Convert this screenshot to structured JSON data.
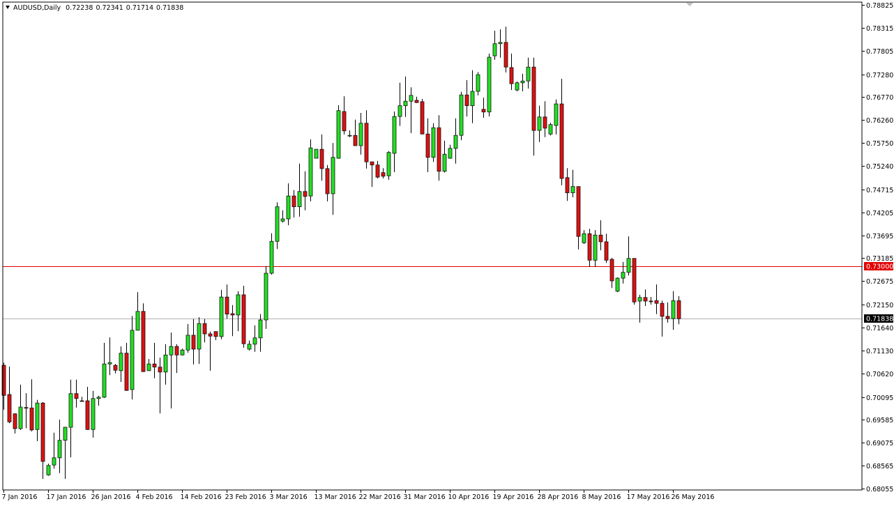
{
  "header": {
    "symbol_timeframe": "AUDUSD,Daily",
    "open": "0.72238",
    "high": "0.72341",
    "low": "0.71714",
    "close": "0.71838"
  },
  "colors": {
    "bull": "#22e022",
    "bear": "#dd1111",
    "level_line": "#e00000",
    "bid_line": "#b0b0b0",
    "bid_label_bg": "#000000",
    "axis": "#000000"
  },
  "chart_data": {
    "type": "candlestick",
    "symbol": "AUDUSD",
    "timeframe": "Daily",
    "ylim": [
      0.68055,
      0.78825
    ],
    "grid": false,
    "y_ticks": [
      "0.78825",
      "0.78315",
      "0.77805",
      "0.77280",
      "0.76770",
      "0.76260",
      "0.75750",
      "0.75240",
      "0.74715",
      "0.74205",
      "0.73695",
      "0.73185",
      "0.72675",
      "0.72150",
      "0.71640",
      "0.71130",
      "0.70620",
      "0.70095",
      "0.69585",
      "0.69075",
      "0.68565",
      "0.68055"
    ],
    "x_ticks": [
      {
        "date": "2016-01-07",
        "label": "7 Jan 2016"
      },
      {
        "date": "2016-01-17",
        "label": "17 Jan 2016"
      },
      {
        "date": "2016-01-26",
        "label": "26 Jan 2016"
      },
      {
        "date": "2016-02-04",
        "label": "4 Feb 2016"
      },
      {
        "date": "2016-02-14",
        "label": "14 Feb 2016"
      },
      {
        "date": "2016-02-23",
        "label": "23 Feb 2016"
      },
      {
        "date": "2016-03-03",
        "label": "3 Mar 2016"
      },
      {
        "date": "2016-03-13",
        "label": "13 Mar 2016"
      },
      {
        "date": "2016-03-22",
        "label": "22 Mar 2016"
      },
      {
        "date": "2016-03-31",
        "label": "31 Mar 2016"
      },
      {
        "date": "2016-04-10",
        "label": "10 Apr 2016"
      },
      {
        "date": "2016-04-19",
        "label": "19 Apr 2016"
      },
      {
        "date": "2016-04-28",
        "label": "28 Apr 2016"
      },
      {
        "date": "2016-05-08",
        "label": "8 May 2016"
      },
      {
        "date": "2016-05-17",
        "label": "17 May 2016"
      },
      {
        "date": "2016-05-26",
        "label": "26 May 2016"
      }
    ],
    "horizontal_lines": [
      {
        "price": 0.73,
        "label": "0.73000",
        "kind": "level"
      },
      {
        "price": 0.71838,
        "label": "0.71838",
        "kind": "bid"
      }
    ],
    "columns": [
      "date",
      "open",
      "high",
      "low",
      "close"
    ],
    "candles": [
      [
        "2016-01-07",
        0.708,
        0.7086,
        0.6981,
        0.7013
      ],
      [
        "2016-01-08",
        0.7015,
        0.7077,
        0.6951,
        0.6954
      ],
      [
        "2016-01-10",
        0.6972,
        0.6973,
        0.6928,
        0.6939
      ],
      [
        "2016-01-11",
        0.6939,
        0.7037,
        0.6936,
        0.6987
      ],
      [
        "2016-01-12",
        0.6986,
        0.7018,
        0.694,
        0.6985
      ],
      [
        "2016-01-13",
        0.6985,
        0.7049,
        0.6933,
        0.6936
      ],
      [
        "2016-01-14",
        0.6937,
        0.7003,
        0.6911,
        0.6996
      ],
      [
        "2016-01-15",
        0.6996,
        0.6998,
        0.6827,
        0.6866
      ],
      [
        "2016-01-17",
        0.6836,
        0.6861,
        0.6834,
        0.6857
      ],
      [
        "2016-01-18",
        0.6858,
        0.693,
        0.685,
        0.6874
      ],
      [
        "2016-01-19",
        0.6874,
        0.6959,
        0.684,
        0.6913
      ],
      [
        "2016-01-20",
        0.6913,
        0.6943,
        0.6827,
        0.6942
      ],
      [
        "2016-01-21",
        0.6942,
        0.7048,
        0.6875,
        0.7017
      ],
      [
        "2016-01-22",
        0.7017,
        0.7048,
        0.6986,
        0.7006
      ],
      [
        "2016-01-24",
        0.7001,
        0.701,
        0.6999,
        0.7
      ],
      [
        "2016-01-25",
        0.7001,
        0.7032,
        0.6936,
        0.6937
      ],
      [
        "2016-01-26",
        0.6937,
        0.7023,
        0.6919,
        0.7006
      ],
      [
        "2016-01-27",
        0.7006,
        0.7012,
        0.699,
        0.7009
      ],
      [
        "2016-01-28",
        0.7009,
        0.713,
        0.7007,
        0.7083
      ],
      [
        "2016-01-29",
        0.7083,
        0.7142,
        0.7058,
        0.7086
      ],
      [
        "2016-01-31",
        0.708,
        0.7083,
        0.7062,
        0.7069
      ],
      [
        "2016-02-01",
        0.7068,
        0.7122,
        0.7043,
        0.7107
      ],
      [
        "2016-02-02",
        0.7107,
        0.713,
        0.7023,
        0.7024
      ],
      [
        "2016-02-03",
        0.7026,
        0.719,
        0.7004,
        0.7158
      ],
      [
        "2016-02-04",
        0.7158,
        0.7243,
        0.7158,
        0.72
      ],
      [
        "2016-02-05",
        0.72,
        0.7218,
        0.7065,
        0.7066
      ],
      [
        "2016-02-07",
        0.7068,
        0.7094,
        0.7068,
        0.7083
      ],
      [
        "2016-02-08",
        0.7083,
        0.713,
        0.7051,
        0.7076
      ],
      [
        "2016-02-09",
        0.7076,
        0.7097,
        0.6973,
        0.7065
      ],
      [
        "2016-02-10",
        0.7065,
        0.7127,
        0.7037,
        0.7103
      ],
      [
        "2016-02-11",
        0.7103,
        0.7153,
        0.6984,
        0.7122
      ],
      [
        "2016-02-12",
        0.7122,
        0.7127,
        0.7063,
        0.7103
      ],
      [
        "2016-02-14",
        0.7103,
        0.7117,
        0.7102,
        0.7114
      ],
      [
        "2016-02-15",
        0.7114,
        0.7172,
        0.7108,
        0.7147
      ],
      [
        "2016-02-16",
        0.7147,
        0.7183,
        0.7082,
        0.7116
      ],
      [
        "2016-02-17",
        0.7116,
        0.7187,
        0.7083,
        0.7173
      ],
      [
        "2016-02-18",
        0.7173,
        0.7183,
        0.7131,
        0.715
      ],
      [
        "2016-02-19",
        0.715,
        0.7155,
        0.7068,
        0.7145
      ],
      [
        "2016-02-21",
        0.7155,
        0.7156,
        0.7136,
        0.7144
      ],
      [
        "2016-02-22",
        0.7144,
        0.7248,
        0.7138,
        0.7232
      ],
      [
        "2016-02-23",
        0.7232,
        0.726,
        0.7184,
        0.7194
      ],
      [
        "2016-02-24",
        0.7195,
        0.7214,
        0.7145,
        0.7192
      ],
      [
        "2016-02-25",
        0.7192,
        0.7245,
        0.7156,
        0.7237
      ],
      [
        "2016-02-26",
        0.7237,
        0.7257,
        0.7119,
        0.7128
      ],
      [
        "2016-02-28",
        0.7116,
        0.7135,
        0.7113,
        0.7127
      ],
      [
        "2016-02-29",
        0.7127,
        0.7169,
        0.711,
        0.7141
      ],
      [
        "2016-03-01",
        0.7141,
        0.7194,
        0.711,
        0.7181
      ],
      [
        "2016-03-02",
        0.7181,
        0.7301,
        0.7161,
        0.7285
      ],
      [
        "2016-03-03",
        0.7285,
        0.7374,
        0.7282,
        0.7356
      ],
      [
        "2016-03-04",
        0.7356,
        0.7443,
        0.7339,
        0.7433
      ],
      [
        "2016-03-06",
        0.7401,
        0.7425,
        0.7398,
        0.7406
      ],
      [
        "2016-03-07",
        0.7406,
        0.7485,
        0.7392,
        0.7457
      ],
      [
        "2016-03-08",
        0.7457,
        0.747,
        0.7409,
        0.7433
      ],
      [
        "2016-03-09",
        0.7433,
        0.7529,
        0.7411,
        0.7467
      ],
      [
        "2016-03-10",
        0.7467,
        0.7512,
        0.7425,
        0.7456
      ],
      [
        "2016-03-11",
        0.7457,
        0.7583,
        0.7445,
        0.7564
      ],
      [
        "2016-03-13",
        0.7541,
        0.7561,
        0.7541,
        0.7561
      ],
      [
        "2016-03-14",
        0.7561,
        0.7594,
        0.7491,
        0.7518
      ],
      [
        "2016-03-15",
        0.7518,
        0.7526,
        0.7445,
        0.7462
      ],
      [
        "2016-03-16",
        0.7462,
        0.7575,
        0.7415,
        0.7543
      ],
      [
        "2016-03-17",
        0.7541,
        0.7659,
        0.754,
        0.7647
      ],
      [
        "2016-03-18",
        0.7645,
        0.7679,
        0.7594,
        0.7602
      ],
      [
        "2016-03-20",
        0.7592,
        0.7603,
        0.7588,
        0.7592
      ],
      [
        "2016-03-21",
        0.7592,
        0.7627,
        0.7569,
        0.7569
      ],
      [
        "2016-03-22",
        0.7569,
        0.7642,
        0.7549,
        0.7619
      ],
      [
        "2016-03-23",
        0.7619,
        0.7648,
        0.7518,
        0.7533
      ],
      [
        "2016-03-24",
        0.7533,
        0.7533,
        0.7477,
        0.7526
      ],
      [
        "2016-03-25",
        0.7526,
        0.7535,
        0.7496,
        0.7499
      ],
      [
        "2016-03-27",
        0.7509,
        0.7519,
        0.7496,
        0.7501
      ],
      [
        "2016-03-28",
        0.7502,
        0.7557,
        0.7493,
        0.7554
      ],
      [
        "2016-03-29",
        0.7552,
        0.7645,
        0.751,
        0.7634
      ],
      [
        "2016-03-30",
        0.7634,
        0.7709,
        0.7613,
        0.7658
      ],
      [
        "2016-03-31",
        0.7658,
        0.7723,
        0.7633,
        0.7668
      ],
      [
        "2016-04-01",
        0.7668,
        0.7699,
        0.7597,
        0.7681
      ],
      [
        "2016-04-03",
        0.767,
        0.7678,
        0.7664,
        0.7665
      ],
      [
        "2016-04-04",
        0.7667,
        0.7673,
        0.7594,
        0.7595
      ],
      [
        "2016-04-05",
        0.7595,
        0.763,
        0.751,
        0.7543
      ],
      [
        "2016-04-06",
        0.7543,
        0.7619,
        0.7533,
        0.7609
      ],
      [
        "2016-04-07",
        0.7609,
        0.7637,
        0.7491,
        0.7512
      ],
      [
        "2016-04-08",
        0.7512,
        0.758,
        0.7509,
        0.755
      ],
      [
        "2016-04-10",
        0.7541,
        0.7571,
        0.754,
        0.7563
      ],
      [
        "2016-04-11",
        0.7563,
        0.763,
        0.7529,
        0.7592
      ],
      [
        "2016-04-12",
        0.7592,
        0.7689,
        0.7581,
        0.7682
      ],
      [
        "2016-04-13",
        0.7682,
        0.7715,
        0.7634,
        0.7658
      ],
      [
        "2016-04-14",
        0.7658,
        0.7737,
        0.7619,
        0.769
      ],
      [
        "2016-04-15",
        0.769,
        0.7733,
        0.7681,
        0.7727
      ],
      [
        "2016-04-17",
        0.765,
        0.7676,
        0.7631,
        0.7644
      ],
      [
        "2016-04-18",
        0.7644,
        0.7774,
        0.7634,
        0.7766
      ],
      [
        "2016-04-19",
        0.7769,
        0.7825,
        0.776,
        0.7796
      ],
      [
        "2016-04-20",
        0.7796,
        0.7828,
        0.7765,
        0.7799
      ],
      [
        "2016-04-21",
        0.7799,
        0.7834,
        0.7732,
        0.7744
      ],
      [
        "2016-04-22",
        0.7743,
        0.7774,
        0.7693,
        0.7707
      ],
      [
        "2016-04-24",
        0.7693,
        0.7712,
        0.769,
        0.7709
      ],
      [
        "2016-04-25",
        0.7709,
        0.7729,
        0.769,
        0.7713
      ],
      [
        "2016-04-26",
        0.7713,
        0.7765,
        0.7696,
        0.7744
      ],
      [
        "2016-04-27",
        0.7744,
        0.7765,
        0.7547,
        0.7603
      ],
      [
        "2016-04-28",
        0.7603,
        0.7658,
        0.7577,
        0.7633
      ],
      [
        "2016-04-29",
        0.7633,
        0.7668,
        0.7588,
        0.7608
      ],
      [
        "2016-05-01",
        0.7595,
        0.762,
        0.7592,
        0.7616
      ],
      [
        "2016-05-02",
        0.7614,
        0.7672,
        0.7594,
        0.7662
      ],
      [
        "2016-05-03",
        0.7662,
        0.7718,
        0.7481,
        0.7496
      ],
      [
        "2016-05-04",
        0.7498,
        0.7519,
        0.7446,
        0.7464
      ],
      [
        "2016-05-05",
        0.7464,
        0.7515,
        0.7454,
        0.7478
      ],
      [
        "2016-05-06",
        0.7478,
        0.7478,
        0.7338,
        0.7367
      ],
      [
        "2016-05-08",
        0.7353,
        0.7381,
        0.735,
        0.7373
      ],
      [
        "2016-05-09",
        0.7373,
        0.7384,
        0.7299,
        0.7314
      ],
      [
        "2016-05-10",
        0.7314,
        0.7381,
        0.7299,
        0.737
      ],
      [
        "2016-05-11",
        0.737,
        0.7403,
        0.7336,
        0.7355
      ],
      [
        "2016-05-12",
        0.7355,
        0.7373,
        0.7308,
        0.7314
      ],
      [
        "2016-05-13",
        0.7316,
        0.7319,
        0.7252,
        0.7268
      ],
      [
        "2016-05-15",
        0.7245,
        0.7276,
        0.7243,
        0.7274
      ],
      [
        "2016-05-16",
        0.7274,
        0.731,
        0.7262,
        0.7287
      ],
      [
        "2016-05-17",
        0.7287,
        0.7367,
        0.728,
        0.7318
      ],
      [
        "2016-05-18",
        0.7318,
        0.7318,
        0.7215,
        0.7221
      ],
      [
        "2016-05-19",
        0.7223,
        0.7237,
        0.7175,
        0.7231
      ],
      [
        "2016-05-20",
        0.7231,
        0.7249,
        0.7212,
        0.7223
      ],
      [
        "2016-05-22",
        0.7223,
        0.7232,
        0.7215,
        0.7222
      ],
      [
        "2016-05-23",
        0.7224,
        0.726,
        0.7194,
        0.7218
      ],
      [
        "2016-05-24",
        0.7218,
        0.7224,
        0.7144,
        0.7189
      ],
      [
        "2016-05-25",
        0.7189,
        0.722,
        0.7175,
        0.7184
      ],
      [
        "2016-05-26",
        0.7184,
        0.7245,
        0.7159,
        0.7224
      ],
      [
        "2016-05-27",
        0.72238,
        0.72341,
        0.71714,
        0.71838
      ]
    ]
  }
}
